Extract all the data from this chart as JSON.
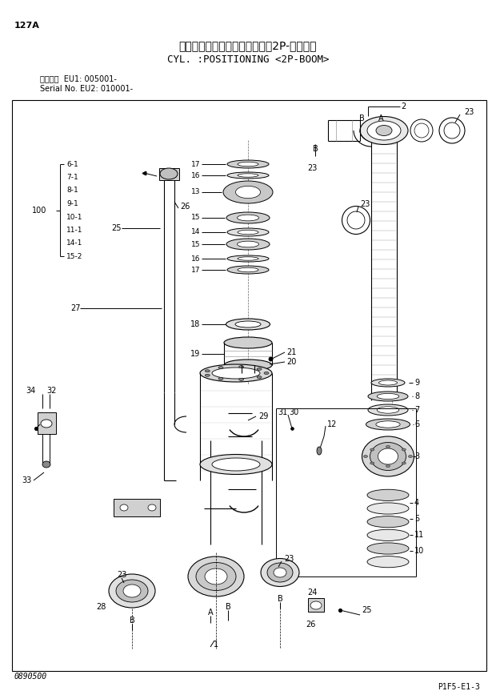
{
  "title_jp": "シリンダ；ポジショニング　＜2P-ブーム＞",
  "title_en": "CYL. :POSITIONING <2P-BOOM>",
  "page_id": "127A",
  "serial_line1": "適用号機  EU1: 005001-",
  "serial_line2": "Serial No. EU2: 010001-",
  "bottom_left": "0890500",
  "bottom_right": "P1F5-E1-3",
  "bg_color": "#ffffff"
}
